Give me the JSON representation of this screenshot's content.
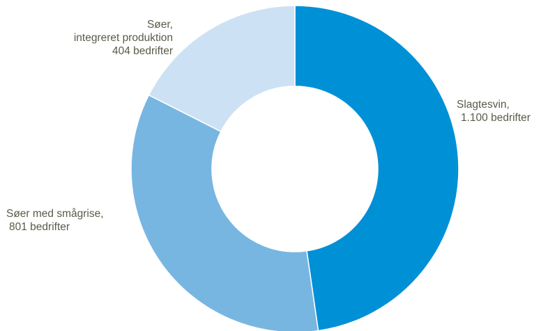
{
  "chart_data": {
    "type": "pie",
    "style": "donut",
    "labels_lines": [
      [
        "Slagtesvin,",
        "1.100 bedrifter"
      ],
      [
        "Søer med smågrise,",
        "801 bedrifter"
      ],
      [
        "Søer,",
        "integreret produktion",
        "404 bedrifter"
      ]
    ],
    "categories": [
      "Slagtesvin",
      "Søer med smågrise",
      "Søer, integreret produktion"
    ],
    "values": [
      1100,
      801,
      404
    ],
    "colors": [
      "#0090d6",
      "#78b6e2",
      "#cde1f4"
    ]
  }
}
